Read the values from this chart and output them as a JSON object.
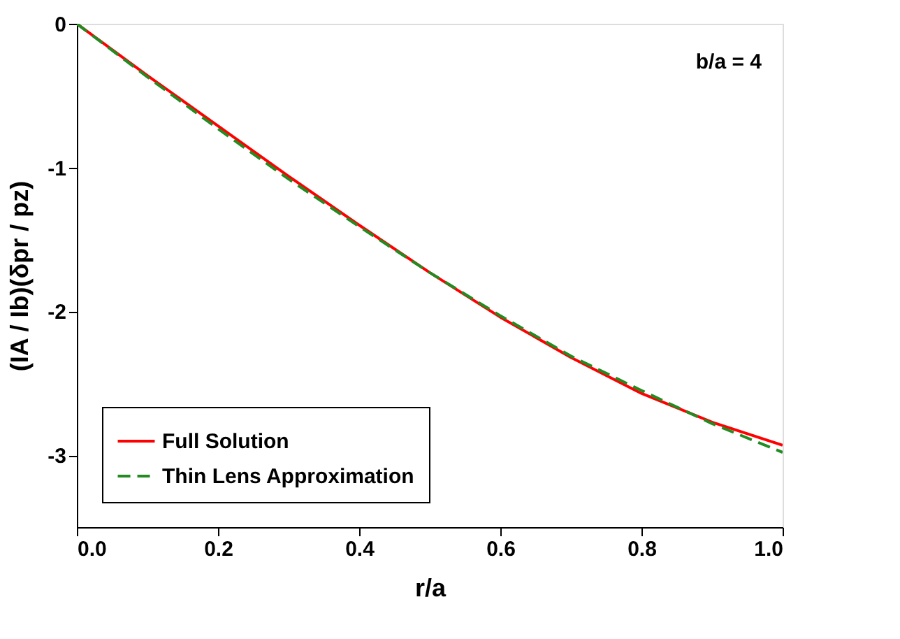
{
  "chart_data": {
    "type": "line",
    "xlabel": "r/a",
    "ylabel": "(IA / Ib)(δpr / pz)",
    "annotations": [
      "b/a = 4"
    ],
    "x": [
      0,
      0.1,
      0.2,
      0.3,
      0.4,
      0.5,
      0.6,
      0.7,
      0.8,
      0.9,
      1.0
    ],
    "series": [
      {
        "name": "Full Solution",
        "color": "#ff0000",
        "line_style": "solid",
        "values": [
          0,
          -0.36,
          -0.71,
          -1.06,
          -1.4,
          -1.73,
          -2.04,
          -2.32,
          -2.57,
          -2.77,
          -2.93
        ]
      },
      {
        "name": "Thin Lens Approximation",
        "color": "#228b22",
        "line_style": "dashed",
        "values": [
          0,
          -0.37,
          -0.73,
          -1.08,
          -1.41,
          -1.73,
          -2.03,
          -2.31,
          -2.55,
          -2.78,
          -2.98
        ]
      }
    ],
    "xlim": [
      0,
      1.0
    ],
    "ylim": [
      -3.5,
      0
    ],
    "xticks": [
      {
        "value": 0,
        "label": "0.0"
      },
      {
        "value": 0.2,
        "label": "0.2"
      },
      {
        "value": 0.4,
        "label": "0.4"
      },
      {
        "value": 0.6,
        "label": "0.6"
      },
      {
        "value": 0.8,
        "label": "0.8"
      },
      {
        "value": 1.0,
        "label": "1.0"
      }
    ],
    "yticks": [
      0,
      -1,
      -2,
      -3
    ],
    "grid": false,
    "legend": "bottom left",
    "marker": "none"
  }
}
